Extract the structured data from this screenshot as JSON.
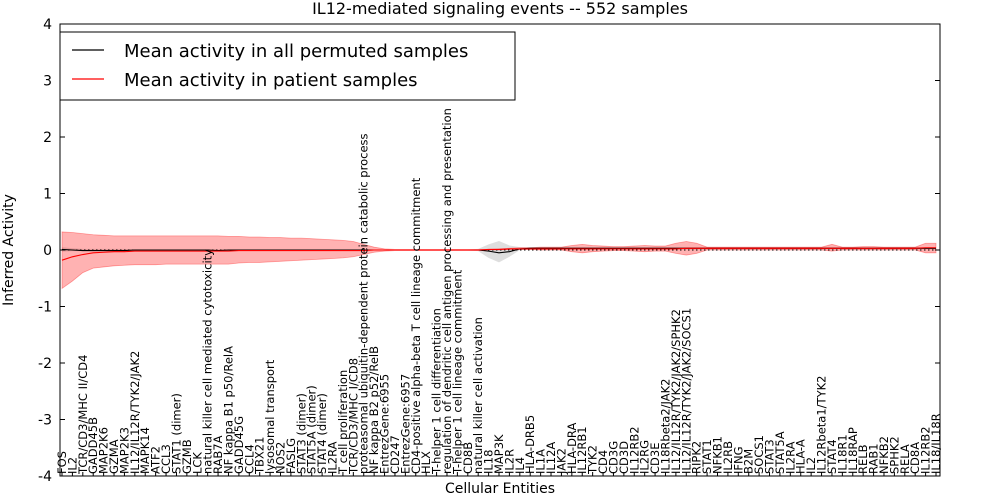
{
  "chart_data": {
    "type": "line",
    "title": "IL12-mediated signaling events -- 552 samples",
    "xlabel": "Cellular Entities",
    "ylabel": "Inferred Activity",
    "ylim": [
      -4,
      4
    ],
    "yticks": [
      "-4",
      "-3",
      "-2",
      "-1",
      "0",
      "1",
      "2",
      "3",
      "4"
    ],
    "legend_position": "top-left",
    "categories": [
      "FOS",
      "IL2",
      "TCR/CD3/MHC II/CD4",
      "GADD45B",
      "MAP2K6",
      "GZMA",
      "MAP2K3",
      "IL12/IL12R/TYK2/JAK2",
      "MAPK14",
      "ATF2",
      "CCL3",
      "STAT1 (dimer)",
      "GZMB",
      "LCK",
      "natural killer cell mediated cytotoxicity",
      "RAB7A",
      "NF kappa B1 p50/RelA",
      "GADD45G",
      "CCL4",
      "TBX21",
      "lysosomal transport",
      "NOS2",
      "FASLG",
      "STAT3 (dimer)",
      "STAT5A (dimer)",
      "STAT4 (dimer)",
      "IL2RA",
      "T cell proliferation",
      "TCR/CD3/MHC I/CD8",
      "proteasomal ubiquitin-dependent protein catabolic process",
      "NF kappa B2 p52/RelB",
      "EntrezGene:6955",
      "CD247",
      "EntrezGene:6957",
      "CD4-positive alpha-beta T cell lineage commitment",
      "HLX",
      "T-helper 1 cell differentiation",
      "regulation of dendritic cell antigen processing and presentation",
      "T-helper 1 cell lineage commitment",
      "CD8B",
      "natural killer cell activation",
      "IL18",
      "MAP3K",
      "IL2R",
      "IL4",
      "HLA-DRB5",
      "IL1A",
      "IL12A",
      "JAK2",
      "HLA-DRA",
      "IL12RB1",
      "TYK2",
      "CD4",
      "CD3G",
      "CD3D",
      "IL12RB2",
      "IL2RG",
      "CD3E",
      "IL18Rbeta2/JAK2",
      "IL12/IL12R/TYK2/JAK2/SPHK2",
      "IL12/IL12R/TYK2/JAK2/SOCS1",
      "RIPK2",
      "STAT1",
      "NFKB1",
      "IL2RB",
      "IFNG",
      "B2M",
      "SOCS1",
      "STAT3",
      "STAT5A",
      "IL2RA",
      "HLA-A",
      "IL2",
      "IL12Rbeta1/TYK2",
      "STAT4",
      "IL18R1",
      "IL18RAP",
      "RELB",
      "RAB1",
      "NFKB2",
      "SPHK2",
      "RELA",
      "CD8A",
      "IL12RB2",
      "IL18/IL18R"
    ],
    "series": [
      {
        "name": "Mean activity in all permuted samples",
        "color": "#000000",
        "values": [
          0.01,
          0.0,
          -0.01,
          -0.01,
          -0.01,
          -0.01,
          -0.01,
          0.0,
          0.0,
          0.0,
          0.0,
          0.0,
          0.0,
          0.0,
          0.0,
          -0.01,
          0.0,
          0.0,
          0.0,
          0.0,
          0.0,
          0.0,
          0.0,
          0.0,
          0.0,
          0.0,
          0.0,
          0.0,
          0.0,
          0.0,
          0.0,
          0.0,
          0.0,
          0.0,
          0.0,
          0.0,
          0.0,
          0.0,
          0.0,
          0.0,
          0.0,
          -0.02,
          -0.05,
          -0.03,
          0.02,
          0.03,
          0.03,
          0.03,
          0.03,
          0.03,
          0.03,
          0.03,
          0.03,
          0.03,
          0.03,
          0.03,
          0.03,
          0.03,
          0.03,
          0.03,
          0.03,
          0.03,
          0.03,
          0.03,
          0.03,
          0.03,
          0.03,
          0.03,
          0.03,
          0.03,
          0.03,
          0.03,
          0.03,
          0.03,
          0.03,
          0.03,
          0.03,
          0.03,
          0.03,
          0.03,
          0.03,
          0.03,
          0.03,
          0.03,
          0.03
        ]
      },
      {
        "name": "Mean activity in patient samples",
        "color": "#ff0000",
        "values": [
          -0.18,
          -0.12,
          -0.08,
          -0.05,
          -0.04,
          -0.03,
          -0.03,
          -0.02,
          -0.02,
          -0.02,
          -0.02,
          -0.02,
          -0.02,
          -0.02,
          -0.02,
          -0.02,
          -0.02,
          -0.01,
          -0.01,
          -0.01,
          -0.01,
          -0.01,
          -0.01,
          -0.01,
          -0.01,
          -0.01,
          -0.01,
          -0.01,
          -0.01,
          -0.01,
          0.0,
          0.0,
          0.0,
          0.0,
          0.0,
          0.0,
          0.0,
          0.0,
          0.0,
          0.0,
          0.0,
          0.01,
          0.01,
          0.02,
          0.02,
          0.02,
          0.02,
          0.02,
          0.02,
          0.02,
          0.02,
          0.02,
          0.02,
          0.02,
          0.02,
          0.02,
          0.02,
          0.02,
          0.02,
          0.02,
          0.03,
          0.03,
          0.03,
          0.03,
          0.03,
          0.03,
          0.03,
          0.03,
          0.03,
          0.03,
          0.03,
          0.03,
          0.03,
          0.03,
          0.03,
          0.03,
          0.03,
          0.03,
          0.03,
          0.03,
          0.03,
          0.03,
          0.03,
          0.04,
          0.04
        ]
      }
    ],
    "permuted_band": {
      "color": "#c8c8c8",
      "lower": [
        -0.03,
        -0.02,
        -0.02,
        -0.02,
        -0.02,
        -0.02,
        -0.02,
        -0.01,
        -0.01,
        -0.01,
        -0.01,
        -0.01,
        -0.01,
        -0.01,
        -0.01,
        -0.02,
        -0.01,
        -0.01,
        -0.01,
        -0.01,
        -0.01,
        -0.01,
        -0.01,
        -0.01,
        -0.01,
        -0.01,
        -0.01,
        -0.01,
        -0.01,
        -0.01,
        -0.01,
        -0.01,
        -0.01,
        -0.01,
        -0.01,
        -0.01,
        -0.01,
        -0.01,
        -0.01,
        -0.01,
        -0.02,
        -0.14,
        -0.22,
        -0.12,
        0.0,
        0.01,
        0.01,
        0.01,
        0.01,
        0.01,
        0.01,
        0.01,
        0.01,
        0.01,
        0.01,
        0.01,
        0.01,
        0.01,
        0.01,
        0.01,
        0.01,
        0.01,
        0.01,
        0.01,
        0.01,
        0.01,
        0.01,
        0.01,
        0.01,
        0.01,
        0.01,
        0.01,
        0.01,
        0.01,
        0.01,
        0.01,
        0.01,
        0.01,
        0.01,
        0.01,
        0.01,
        0.01,
        0.01,
        0.01,
        0.01
      ],
      "upper": [
        0.05,
        0.03,
        0.02,
        0.02,
        0.02,
        0.02,
        0.02,
        0.01,
        0.01,
        0.01,
        0.01,
        0.01,
        0.01,
        0.01,
        0.01,
        0.01,
        0.01,
        0.01,
        0.01,
        0.01,
        0.01,
        0.01,
        0.01,
        0.01,
        0.01,
        0.01,
        0.01,
        0.01,
        0.01,
        0.01,
        0.01,
        0.01,
        0.01,
        0.01,
        0.01,
        0.01,
        0.01,
        0.01,
        0.01,
        0.01,
        0.02,
        0.1,
        0.16,
        0.08,
        0.05,
        0.05,
        0.05,
        0.05,
        0.05,
        0.05,
        0.05,
        0.05,
        0.05,
        0.05,
        0.05,
        0.05,
        0.05,
        0.05,
        0.05,
        0.05,
        0.05,
        0.05,
        0.05,
        0.05,
        0.05,
        0.05,
        0.05,
        0.05,
        0.05,
        0.05,
        0.05,
        0.05,
        0.05,
        0.05,
        0.05,
        0.05,
        0.05,
        0.05,
        0.05,
        0.05,
        0.05,
        0.05,
        0.05,
        0.05,
        0.05
      ]
    },
    "patient_band": {
      "color": "#ff0000",
      "opacity": 0.3,
      "lower": [
        -0.68,
        -0.55,
        -0.4,
        -0.32,
        -0.3,
        -0.28,
        -0.27,
        -0.26,
        -0.26,
        -0.26,
        -0.25,
        -0.25,
        -0.25,
        -0.25,
        -0.25,
        -0.25,
        -0.25,
        -0.23,
        -0.22,
        -0.22,
        -0.21,
        -0.2,
        -0.19,
        -0.18,
        -0.17,
        -0.16,
        -0.15,
        -0.14,
        -0.12,
        -0.08,
        -0.04,
        -0.02,
        -0.01,
        -0.01,
        -0.01,
        -0.01,
        -0.01,
        -0.01,
        -0.01,
        -0.01,
        -0.01,
        0.0,
        0.0,
        0.01,
        0.01,
        0.01,
        0.0,
        0.0,
        0.0,
        -0.03,
        -0.05,
        -0.03,
        -0.02,
        -0.01,
        -0.01,
        -0.02,
        -0.03,
        -0.02,
        -0.02,
        -0.06,
        -0.09,
        -0.06,
        0.0,
        0.0,
        0.0,
        0.0,
        0.0,
        0.0,
        0.0,
        0.0,
        0.0,
        0.0,
        0.0,
        0.0,
        -0.02,
        0.0,
        0.0,
        0.0,
        0.0,
        0.0,
        0.0,
        0.0,
        0.0,
        -0.05,
        -0.05
      ],
      "upper": [
        0.32,
        0.31,
        0.29,
        0.27,
        0.26,
        0.25,
        0.25,
        0.25,
        0.25,
        0.25,
        0.25,
        0.25,
        0.25,
        0.25,
        0.25,
        0.25,
        0.24,
        0.24,
        0.23,
        0.23,
        0.22,
        0.22,
        0.21,
        0.21,
        0.2,
        0.19,
        0.18,
        0.17,
        0.15,
        0.1,
        0.05,
        0.02,
        0.01,
        0.01,
        0.01,
        0.01,
        0.01,
        0.01,
        0.01,
        0.01,
        0.01,
        0.01,
        0.02,
        0.03,
        0.04,
        0.04,
        0.05,
        0.05,
        0.05,
        0.08,
        0.1,
        0.08,
        0.07,
        0.06,
        0.06,
        0.07,
        0.08,
        0.07,
        0.07,
        0.12,
        0.15,
        0.12,
        0.05,
        0.05,
        0.05,
        0.05,
        0.05,
        0.05,
        0.05,
        0.05,
        0.05,
        0.05,
        0.05,
        0.05,
        0.1,
        0.05,
        0.05,
        0.06,
        0.06,
        0.05,
        0.05,
        0.05,
        0.05,
        0.12,
        0.12
      ]
    }
  }
}
